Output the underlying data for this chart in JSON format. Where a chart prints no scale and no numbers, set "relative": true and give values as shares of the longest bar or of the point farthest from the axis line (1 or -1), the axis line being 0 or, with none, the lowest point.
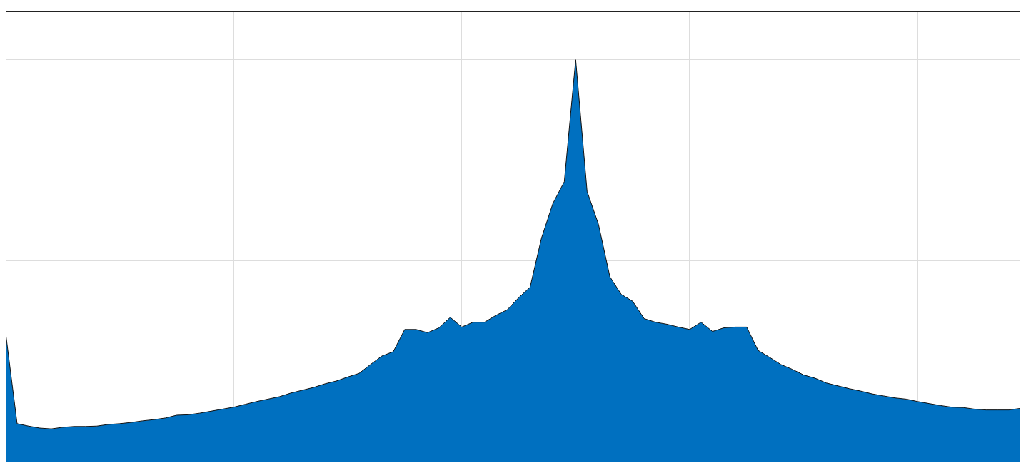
{
  "chart_data": {
    "type": "area",
    "relative": true,
    "grid": true,
    "categories": [
      null,
      null,
      null,
      null,
      null,
      null,
      null,
      null,
      null,
      null,
      null,
      null,
      null,
      null,
      null,
      null,
      null,
      null,
      null,
      null,
      null,
      null,
      null,
      null,
      null,
      null,
      null,
      null,
      null,
      null,
      null,
      null,
      null,
      null,
      null,
      null,
      null,
      null,
      null,
      null,
      null,
      null,
      null,
      null,
      null,
      null,
      null,
      null,
      null,
      null,
      null,
      null,
      null,
      null,
      null,
      null,
      null,
      null,
      null,
      null,
      null,
      null,
      null,
      null,
      null,
      null,
      null,
      null,
      null,
      null,
      null,
      null,
      null,
      null,
      null,
      null,
      null,
      null,
      null,
      null,
      null,
      null,
      null,
      null,
      null,
      null,
      null,
      null,
      null,
      null
    ],
    "series": [
      {
        "color": "#0070c0",
        "values": [
          0.32,
          0.096,
          0.09,
          0.085,
          0.083,
          0.087,
          0.089,
          0.089,
          0.09,
          0.094,
          0.096,
          0.099,
          0.103,
          0.106,
          0.11,
          0.117,
          0.118,
          0.122,
          0.127,
          0.132,
          0.137,
          0.144,
          0.151,
          0.157,
          0.163,
          0.172,
          0.179,
          0.186,
          0.195,
          0.202,
          0.212,
          0.221,
          0.243,
          0.264,
          0.275,
          0.33,
          0.33,
          0.322,
          0.334,
          0.36,
          0.336,
          0.348,
          0.348,
          0.365,
          0.379,
          0.409,
          0.435,
          0.557,
          0.643,
          0.697,
          1,
          0.673,
          0.591,
          0.461,
          0.417,
          0.4,
          0.357,
          0.348,
          0.343,
          0.336,
          0.33,
          0.348,
          0.325,
          0.334,
          0.336,
          0.336,
          0.278,
          0.261,
          0.243,
          0.231,
          0.217,
          0.209,
          0.197,
          0.19,
          0.183,
          0.177,
          0.17,
          0.165,
          0.16,
          0.157,
          0.151,
          0.146,
          0.141,
          0.137,
          0.136,
          0.132,
          0.13,
          0.13,
          0.13,
          0.134
        ]
      }
    ]
  }
}
